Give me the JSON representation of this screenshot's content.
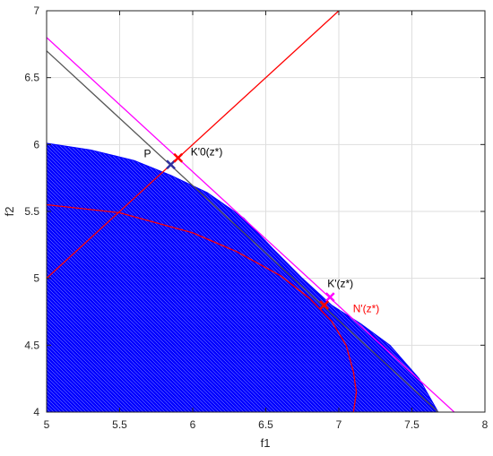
{
  "chart_data": {
    "type": "line",
    "title": "",
    "xlabel": "f1",
    "ylabel": "f2",
    "xlim": [
      5,
      8
    ],
    "ylim": [
      4,
      7
    ],
    "grid": true,
    "xticks": [
      5,
      5.5,
      6,
      6.5,
      7,
      7.5,
      8
    ],
    "yticks": [
      4,
      4.5,
      5,
      5.5,
      6,
      6.5,
      7
    ],
    "xtick_labels": [
      "5",
      "5.5",
      "6",
      "6.5",
      "7",
      "7.5",
      "8"
    ],
    "ytick_labels": [
      "4",
      "4.5",
      "5",
      "5.5",
      "6",
      "6.5",
      "7"
    ],
    "regions": [
      {
        "color": "#0000ff",
        "outline": [
          [
            5,
            4
          ],
          [
            5,
            6.01
          ],
          [
            5.3,
            5.96
          ],
          [
            5.6,
            5.88
          ],
          [
            5.85,
            5.77
          ],
          [
            6.1,
            5.64
          ],
          [
            6.35,
            5.45
          ],
          [
            6.55,
            5.22
          ],
          [
            6.75,
            5.0
          ],
          [
            6.95,
            4.8
          ],
          [
            7.15,
            4.66
          ],
          [
            7.35,
            4.5
          ],
          [
            7.55,
            4.25
          ],
          [
            7.68,
            4.0
          ]
        ]
      }
    ],
    "series": [
      {
        "color": "#555555",
        "x": [
          5,
          7.7
        ],
        "y": [
          6.7,
          3.98
        ]
      },
      {
        "color": "#ff00ff",
        "x": [
          5,
          7.8
        ],
        "y": [
          6.8,
          3.99
        ]
      },
      {
        "color": "#ff0000",
        "x": [
          5,
          7.0
        ],
        "y": [
          5.0,
          7.0
        ]
      },
      {
        "color": "#ff0000",
        "x": [
          5.0,
          5.5,
          6.0,
          6.3,
          6.6,
          6.8,
          6.95,
          7.05,
          7.1,
          7.12,
          7.1
        ],
        "y": [
          5.55,
          5.49,
          5.34,
          5.2,
          5.02,
          4.85,
          4.68,
          4.5,
          4.3,
          4.15,
          4.0
        ]
      }
    ],
    "points": [
      {
        "label": "P",
        "x": 5.85,
        "y": 5.85,
        "color": "#3030a0",
        "marker": "x",
        "label_pos": "left"
      },
      {
        "label": "K'0(z*)",
        "x": 5.9,
        "y": 5.9,
        "color": "#ff0000",
        "marker": "x",
        "label_pos": "right"
      },
      {
        "label": "K'(z*)",
        "x": 6.94,
        "y": 4.86,
        "color": "#ff00ff",
        "marker": "x",
        "label_pos": "above"
      },
      {
        "label": "N'(z*)",
        "x": 6.9,
        "y": 4.8,
        "color": "#ff0000",
        "marker": "x",
        "label_pos": "right"
      }
    ]
  }
}
